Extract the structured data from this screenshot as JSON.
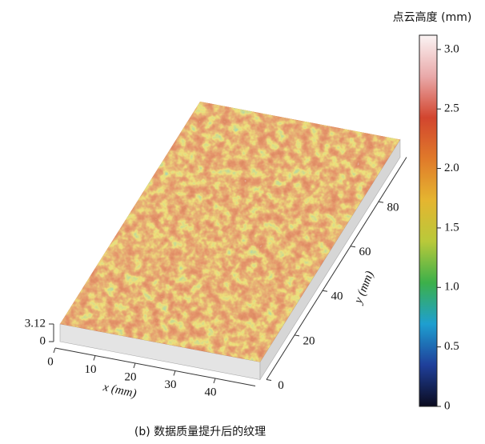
{
  "chart_data": {
    "type": "surface3d",
    "caption": "(b) 数据质量提升后的纹理",
    "xlabel": "x (mm)",
    "ylabel": "y (mm)",
    "xlim": [
      0,
      50
    ],
    "xticks": [
      0,
      10,
      20,
      30,
      40
    ],
    "ylim": [
      0,
      100
    ],
    "yticks": [
      0,
      20,
      40,
      60,
      80
    ],
    "zlim": [
      0,
      3.12
    ],
    "zticks": [
      0,
      3.12
    ],
    "colorbar_label": "点云高度 (mm)",
    "clim": [
      0,
      3.12
    ],
    "cticks": [
      0,
      0.5,
      {
        "value": 1,
        "label": "1.0"
      },
      1.5,
      {
        "value": 2,
        "label": "2.0"
      },
      2.5,
      {
        "value": 3,
        "label": "3.0"
      }
    ],
    "colormap": [
      "#0b0b1e",
      "#1f3f9a",
      "#1e9fd0",
      "#3cb04a",
      "#b9c93a",
      "#e5b530",
      "#e07a2a",
      "#d2452e",
      "#e9a9a9",
      "#fbf4f4"
    ]
  }
}
